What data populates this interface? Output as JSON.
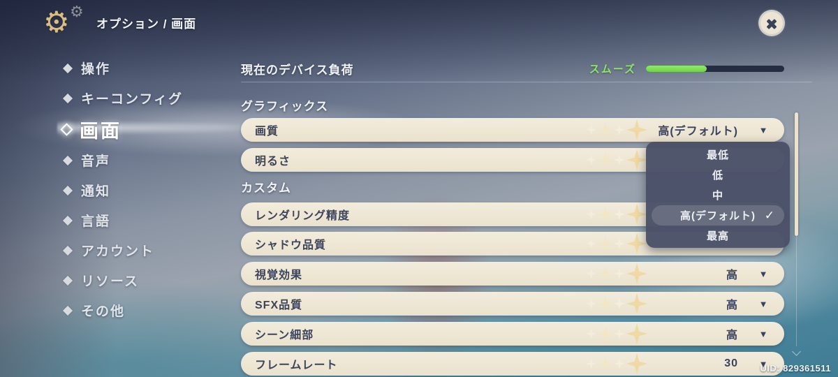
{
  "header": {
    "breadcrumb": "オプション / 画面"
  },
  "sidebar": {
    "items": [
      {
        "label": "操作",
        "selected": false
      },
      {
        "label": "キーコンフィグ",
        "selected": false
      },
      {
        "label": "画面",
        "selected": true
      },
      {
        "label": "音声",
        "selected": false
      },
      {
        "label": "通知",
        "selected": false
      },
      {
        "label": "言語",
        "selected": false
      },
      {
        "label": "アカウント",
        "selected": false
      },
      {
        "label": "リソース",
        "selected": false
      },
      {
        "label": "その他",
        "selected": false
      }
    ]
  },
  "device_load": {
    "label": "現在のデバイス負荷",
    "status_label": "スムーズ",
    "status_color": "#8fe568",
    "bar_fill_percent": 44,
    "bar_fill_color": "#7ed957",
    "bar_track_color": "#242d41"
  },
  "sections": {
    "graphics": "グラフィックス",
    "custom": "カスタム"
  },
  "rows": [
    {
      "label": "画質",
      "value": "高(デフォルト)"
    },
    {
      "label": "明るさ",
      "value": ""
    },
    {
      "label": "レンダリング精度",
      "value": ""
    },
    {
      "label": "シャドウ品質",
      "value": ""
    },
    {
      "label": "視覚効果",
      "value": "高"
    },
    {
      "label": "SFX品質",
      "value": "高"
    },
    {
      "label": "シーン細部",
      "value": "高"
    },
    {
      "label": "フレームレート",
      "value": "30"
    }
  ],
  "quality_dropdown": {
    "options": [
      "最低",
      "低",
      "中",
      "高(デフォルト)",
      "最高"
    ],
    "selected_option": "高(デフォルト)",
    "selected_index": 3,
    "checkmark": "✓"
  },
  "ui": {
    "dropdown_arrow": "▼",
    "gear_glyph": "⚙",
    "row_bg_color": "#ece5d1",
    "dropdown_bg_color": "#4a5167",
    "accent_gold": "#eed8a2"
  },
  "footer": {
    "uid": "UID: 829361511"
  }
}
